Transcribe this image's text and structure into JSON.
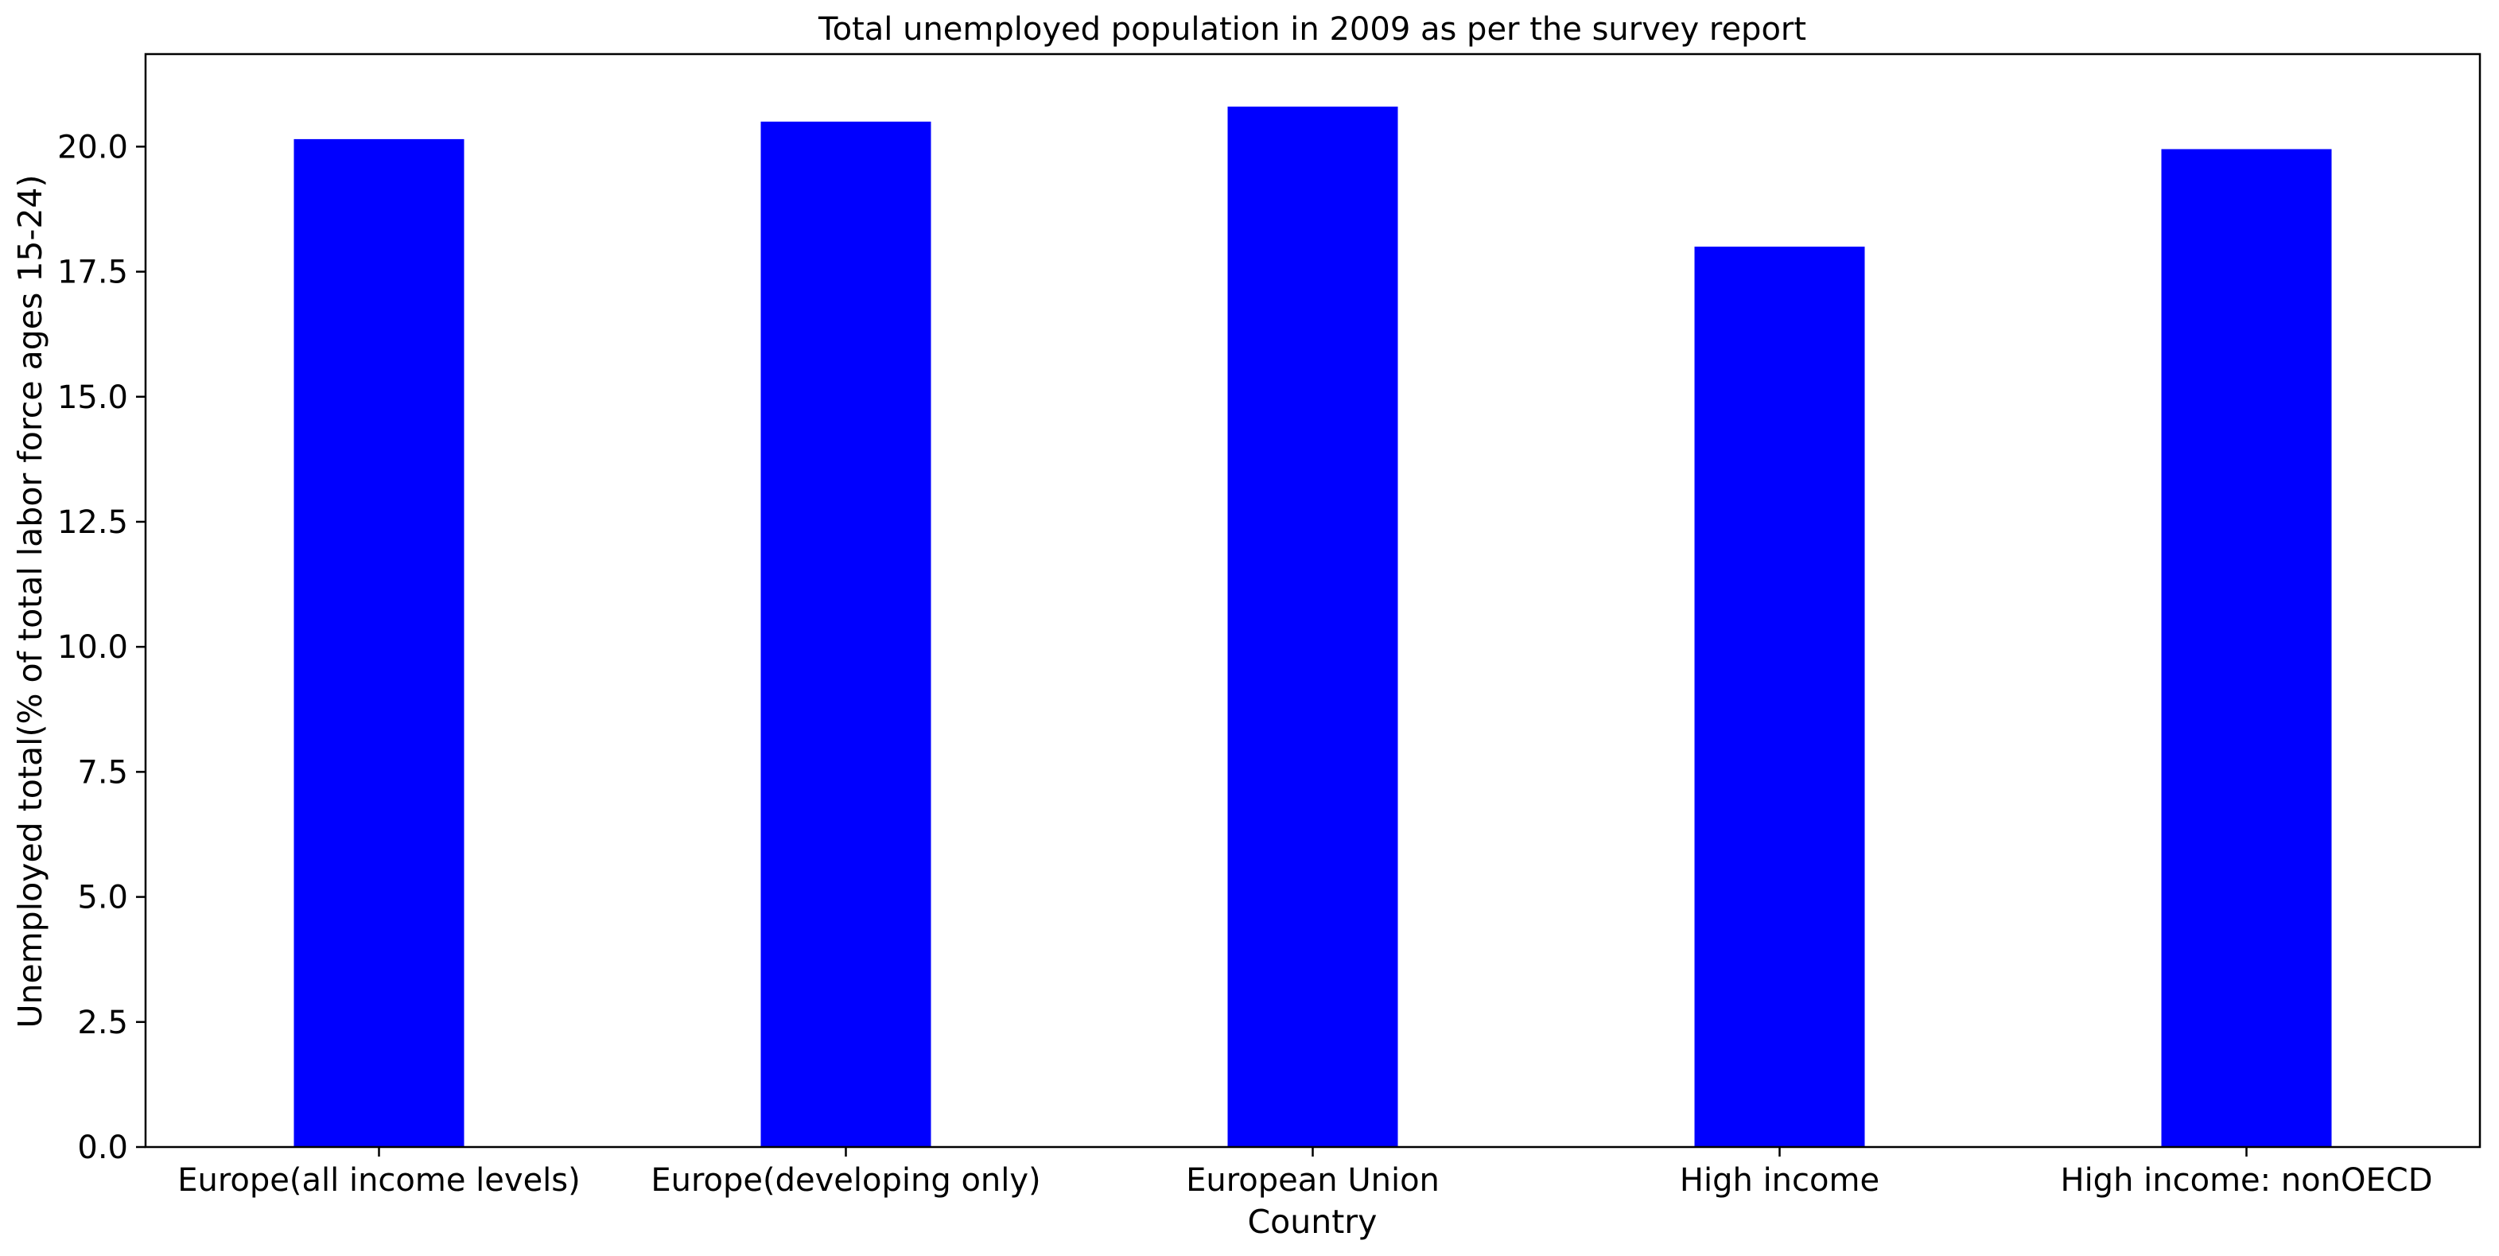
{
  "chart_data": {
    "type": "bar",
    "title": "Total unemployed population in 2009 as per the survey report",
    "xlabel": "Country",
    "ylabel": "Unemployed total(% of total labor force ages 15-24)",
    "categories": [
      "Europe(all income levels)",
      "Europe(developing only)",
      "European Union",
      "High income",
      "High income: nonOECD"
    ],
    "values": [
      20.15,
      20.5,
      20.8,
      18.0,
      19.95
    ],
    "ylim": [
      0,
      21.85
    ],
    "yticks": [
      "0.0",
      "2.5",
      "5.0",
      "7.5",
      "10.0",
      "12.5",
      "15.0",
      "17.5",
      "20.0"
    ],
    "bar_color": "#0000ff",
    "grid": false,
    "legend": false
  }
}
